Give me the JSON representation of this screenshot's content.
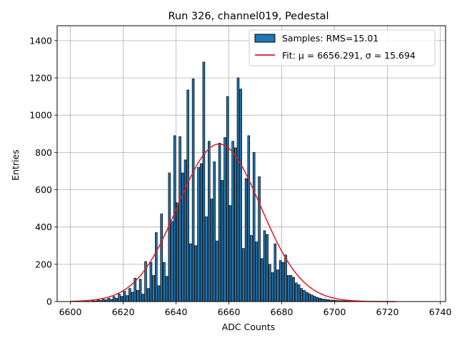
{
  "chart_data": {
    "type": "bar",
    "title": "Run 326, channel019, Pedestal",
    "xlabel": "ADC Counts",
    "ylabel": "Entries",
    "xlim": [
      6595,
      6742
    ],
    "ylim": [
      0,
      1480
    ],
    "xticks": [
      6600,
      6620,
      6640,
      6660,
      6680,
      6700,
      6720,
      6740
    ],
    "yticks": [
      0,
      200,
      400,
      600,
      800,
      1000,
      1200,
      1400
    ],
    "grid": true,
    "legend_position": "top-right",
    "bin_width": 1,
    "bar_fraction": 0.78,
    "bars_series": {
      "name": "Samples: RMS=15.01",
      "color": "#1f77b4",
      "edge_color": "#000000",
      "x": [
        6606,
        6607,
        6608,
        6609,
        6610,
        6611,
        6612,
        6613,
        6614,
        6615,
        6616,
        6617,
        6618,
        6619,
        6620,
        6621,
        6622,
        6623,
        6624,
        6625,
        6626,
        6627,
        6628,
        6629,
        6630,
        6631,
        6632,
        6633,
        6634,
        6635,
        6636,
        6637,
        6638,
        6639,
        6640,
        6641,
        6642,
        6643,
        6644,
        6645,
        6646,
        6647,
        6648,
        6649,
        6650,
        6651,
        6652,
        6653,
        6654,
        6655,
        6656,
        6657,
        6658,
        6659,
        6660,
        6661,
        6662,
        6663,
        6664,
        6665,
        6666,
        6667,
        6668,
        6669,
        6670,
        6671,
        6672,
        6673,
        6674,
        6675,
        6676,
        6677,
        6678,
        6679,
        6680,
        6681,
        6682,
        6683,
        6684,
        6685,
        6686,
        6687,
        6688,
        6689,
        6690,
        6691,
        6692,
        6693,
        6694,
        6695,
        6696,
        6697,
        6698,
        6699,
        6700,
        6701,
        6702,
        6703,
        6704,
        6705,
        6706,
        6707,
        6708,
        6709,
        6710,
        6711,
        6712,
        6713,
        6714,
        6715,
        6716
      ],
      "y": [
        2,
        1,
        4,
        3,
        8,
        6,
        12,
        9,
        18,
        12,
        27,
        18,
        40,
        28,
        55,
        32,
        70,
        50,
        125,
        60,
        120,
        40,
        215,
        70,
        210,
        140,
        370,
        85,
        470,
        210,
        135,
        690,
        430,
        890,
        530,
        885,
        690,
        760,
        1135,
        310,
        1195,
        300,
        720,
        740,
        1285,
        455,
        860,
        550,
        750,
        325,
        850,
        650,
        880,
        1100,
        515,
        860,
        825,
        1200,
        1140,
        285,
        660,
        890,
        355,
        800,
        320,
        670,
        230,
        380,
        360,
        200,
        155,
        310,
        170,
        220,
        210,
        250,
        140,
        140,
        130,
        100,
        90,
        70,
        60,
        50,
        42,
        35,
        28,
        22,
        18,
        14,
        12,
        10,
        8,
        7,
        6,
        5,
        4,
        4,
        3,
        3,
        2,
        2,
        2,
        1,
        1,
        1,
        1,
        1,
        1,
        1,
        1
      ]
    },
    "fit_series": {
      "name": "Fit: μ = 6656.291, σ = 15.694",
      "color": "#e41a1c",
      "mu": 6656.291,
      "sigma": 15.694,
      "amplitude": 845,
      "x_range": [
        6600,
        6723
      ]
    }
  }
}
